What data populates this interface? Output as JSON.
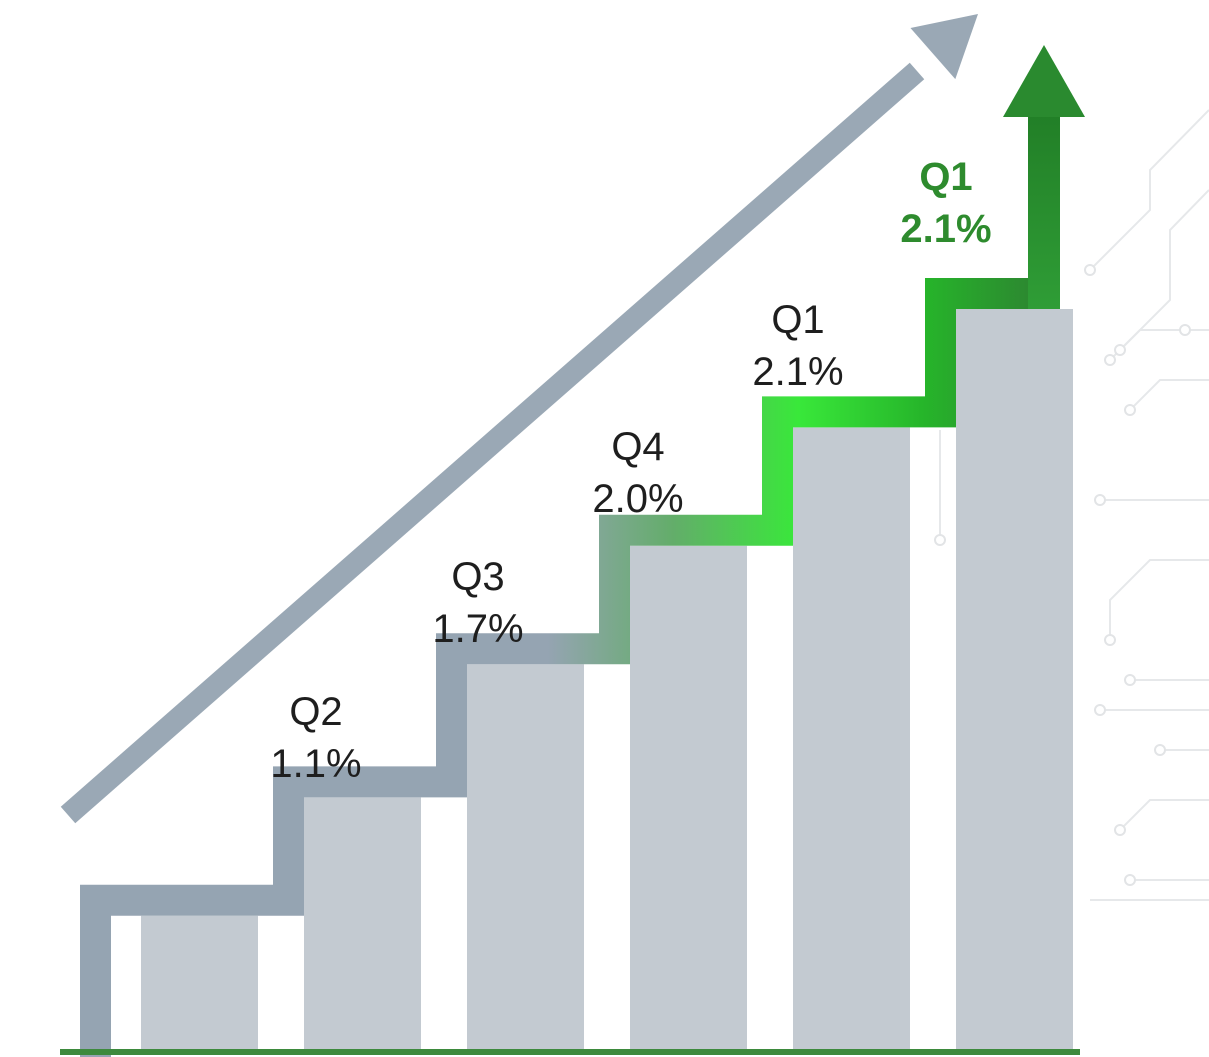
{
  "chart_data": {
    "type": "bar",
    "title": "",
    "xlabel": "",
    "ylabel": "",
    "categories": [
      "",
      "Q2",
      "Q3",
      "Q4",
      "Q1",
      "Q1"
    ],
    "values": [
      null,
      1.1,
      1.7,
      2.0,
      2.1,
      2.1
    ],
    "value_labels": [
      "",
      "1.1%",
      "1.7%",
      "2.0%",
      "2.1%",
      "2.1%"
    ],
    "bar_heights_relative": [
      0.9,
      1.7,
      2.6,
      3.4,
      4.2,
      5.0
    ],
    "highlighted_index": 5,
    "grid": false,
    "legend": "none",
    "colors": {
      "bar": "#c3cad1",
      "stair": "#95a4b2",
      "trend_arrow": "#9aa8b5",
      "highlight": "#2e8b2e",
      "glow": "#39e83a",
      "baseline": "#3d8a3d"
    }
  }
}
